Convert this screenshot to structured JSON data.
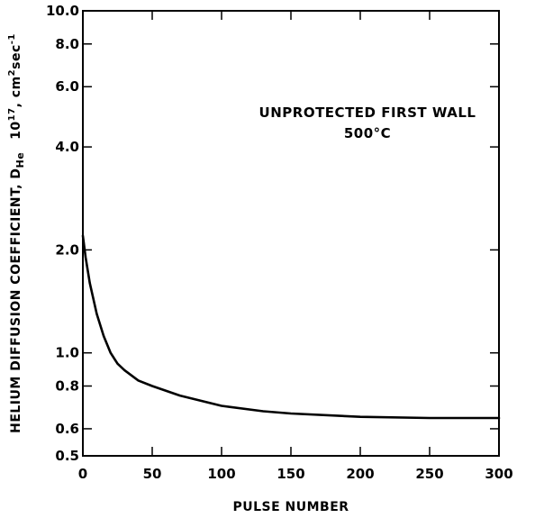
{
  "chart_data": {
    "type": "line",
    "title": "",
    "annotation": [
      "UNPROTECTED FIRST WALL",
      "500°C"
    ],
    "xlabel": "PULSE NUMBER",
    "ylabel": "HELIUM DIFFUSION COEFFICIENT, D",
    "ylabel_sub": "He",
    "yunit_parts": [
      "10",
      "17",
      ", cm",
      "2",
      "sec",
      "-1"
    ],
    "x_scale": "linear",
    "y_scale": "log",
    "xlim": [
      0,
      300
    ],
    "ylim": [
      0.5,
      10.0
    ],
    "x_ticks": [
      0,
      50,
      100,
      150,
      200,
      250,
      300
    ],
    "x_tick_labels": [
      "0",
      "50",
      "100",
      "150",
      "200",
      "250",
      "300"
    ],
    "y_ticks": [
      0.5,
      0.6,
      0.8,
      1.0,
      2.0,
      4.0,
      6.0,
      8.0,
      10.0
    ],
    "y_tick_labels": [
      "0.5",
      "0.6",
      "0.8",
      "1.0",
      "2.0",
      "4.0",
      "6.0",
      "8.0",
      "10.0"
    ],
    "grid": false,
    "series": [
      {
        "x": [
          0,
          2,
          5,
          10,
          15,
          20,
          25,
          30,
          40,
          50,
          70,
          100,
          130,
          150,
          200,
          250,
          300
        ],
        "y": [
          2.2,
          1.9,
          1.6,
          1.3,
          1.12,
          1.0,
          0.93,
          0.89,
          0.83,
          0.8,
          0.75,
          0.7,
          0.675,
          0.665,
          0.65,
          0.645,
          0.645
        ]
      }
    ]
  }
}
